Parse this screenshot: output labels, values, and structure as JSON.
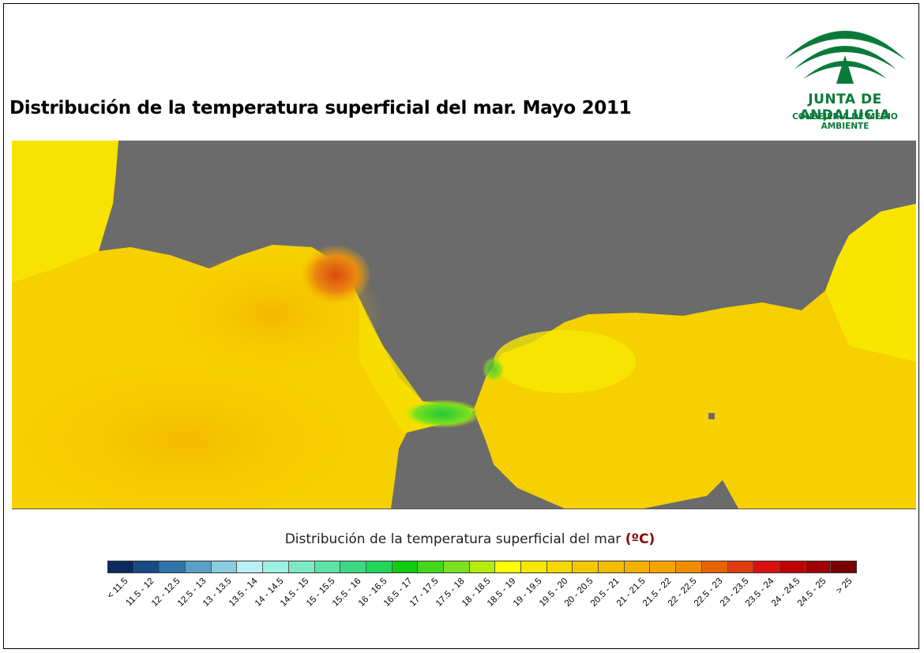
{
  "title": "Distribución de la temperatura superficial del mar. Mayo 2011",
  "logo": {
    "name": "JUNTA DE ANDALUCIA",
    "subtitle": "CONSEJERÍA DE MEDIO AMBIENTE",
    "color": "#0a7a3a"
  },
  "map": {
    "land_color": "#6b6b6b",
    "description_colors": {
      "sea_base": "#f6d200",
      "warm": "#f4b400",
      "hot": "#e05a10",
      "cool": "#3fcf3f"
    }
  },
  "legend": {
    "title": "Distribución de la temperatura superficial del mar",
    "unit": "(ºC)",
    "classes": [
      {
        "label": "< 11.5",
        "color": "#0b2a5e"
      },
      {
        "label": "11.5 - 12",
        "color": "#174a86"
      },
      {
        "label": "12 - 12.5",
        "color": "#2f74a8"
      },
      {
        "label": "12.5 - 13",
        "color": "#5aa0c8"
      },
      {
        "label": "13 - 13.5",
        "color": "#8ccbe0"
      },
      {
        "label": "13.5 - 14",
        "color": "#b8f0f5"
      },
      {
        "label": "14 - 14.5",
        "color": "#9ef0e0"
      },
      {
        "label": "14.5 - 15",
        "color": "#7de8c4"
      },
      {
        "label": "15 - 15.5",
        "color": "#5de2a6"
      },
      {
        "label": "15.5 - 16",
        "color": "#3dd885"
      },
      {
        "label": "16 - 16.5",
        "color": "#22d45a"
      },
      {
        "label": "16.5 - 17",
        "color": "#10cc10"
      },
      {
        "label": "17 - 17.5",
        "color": "#44d61a"
      },
      {
        "label": "17.5 - 18",
        "color": "#7be020"
      },
      {
        "label": "18 - 18.5",
        "color": "#b5ec10"
      },
      {
        "label": "18.5 - 19",
        "color": "#ffff00"
      },
      {
        "label": "19 - 19.5",
        "color": "#f8e800"
      },
      {
        "label": "19.5 - 20",
        "color": "#f6d800"
      },
      {
        "label": "20 - 20.5",
        "color": "#f4c800"
      },
      {
        "label": "20.5 - 21",
        "color": "#f4bc00"
      },
      {
        "label": "21 - 21.5",
        "color": "#f4b000"
      },
      {
        "label": "21.5 - 22",
        "color": "#f4a400"
      },
      {
        "label": "22 - 22.5",
        "color": "#f08c00"
      },
      {
        "label": "22.5 - 23",
        "color": "#e86400"
      },
      {
        "label": "23 - 23.5",
        "color": "#e03c10"
      },
      {
        "label": "23.5 - 24",
        "color": "#dc1010"
      },
      {
        "label": "24 - 24.5",
        "color": "#c00000"
      },
      {
        "label": "24.5 - 25",
        "color": "#a00000"
      },
      {
        "label": "> 25",
        "color": "#7a0000"
      }
    ]
  }
}
